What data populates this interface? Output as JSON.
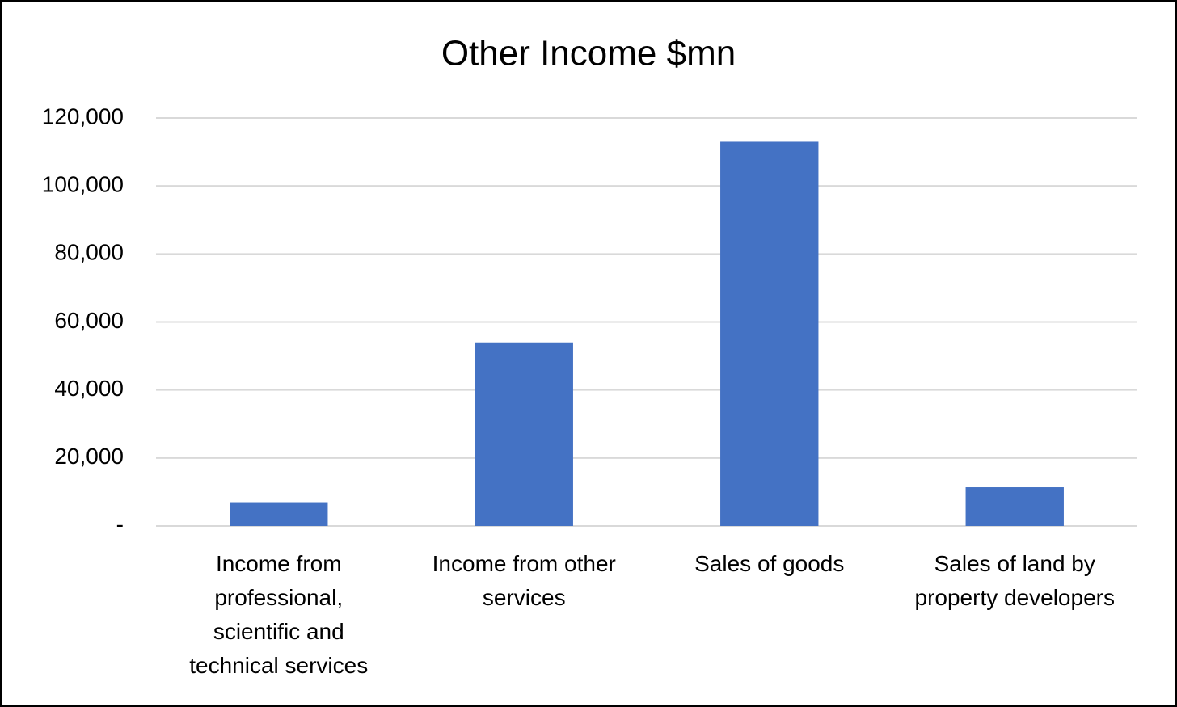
{
  "chart_data": {
    "type": "bar",
    "title": "Other Income $mn",
    "categories": [
      "Income from professional, scientific and technical services",
      "Income from other services",
      "Sales of goods",
      "Sales of land by property developers"
    ],
    "values": [
      7000,
      54000,
      113000,
      11400
    ],
    "color": "#4472c4",
    "ylim": [
      0,
      120000
    ],
    "yticks": [
      {
        "value": 0,
        "label": "-"
      },
      {
        "value": 20000,
        "label": "20,000"
      },
      {
        "value": 40000,
        "label": "40,000"
      },
      {
        "value": 60000,
        "label": "60,000"
      },
      {
        "value": 80000,
        "label": "80,000"
      },
      {
        "value": 100000,
        "label": "100,000"
      },
      {
        "value": 120000,
        "label": "120,000"
      }
    ],
    "grid": true
  }
}
